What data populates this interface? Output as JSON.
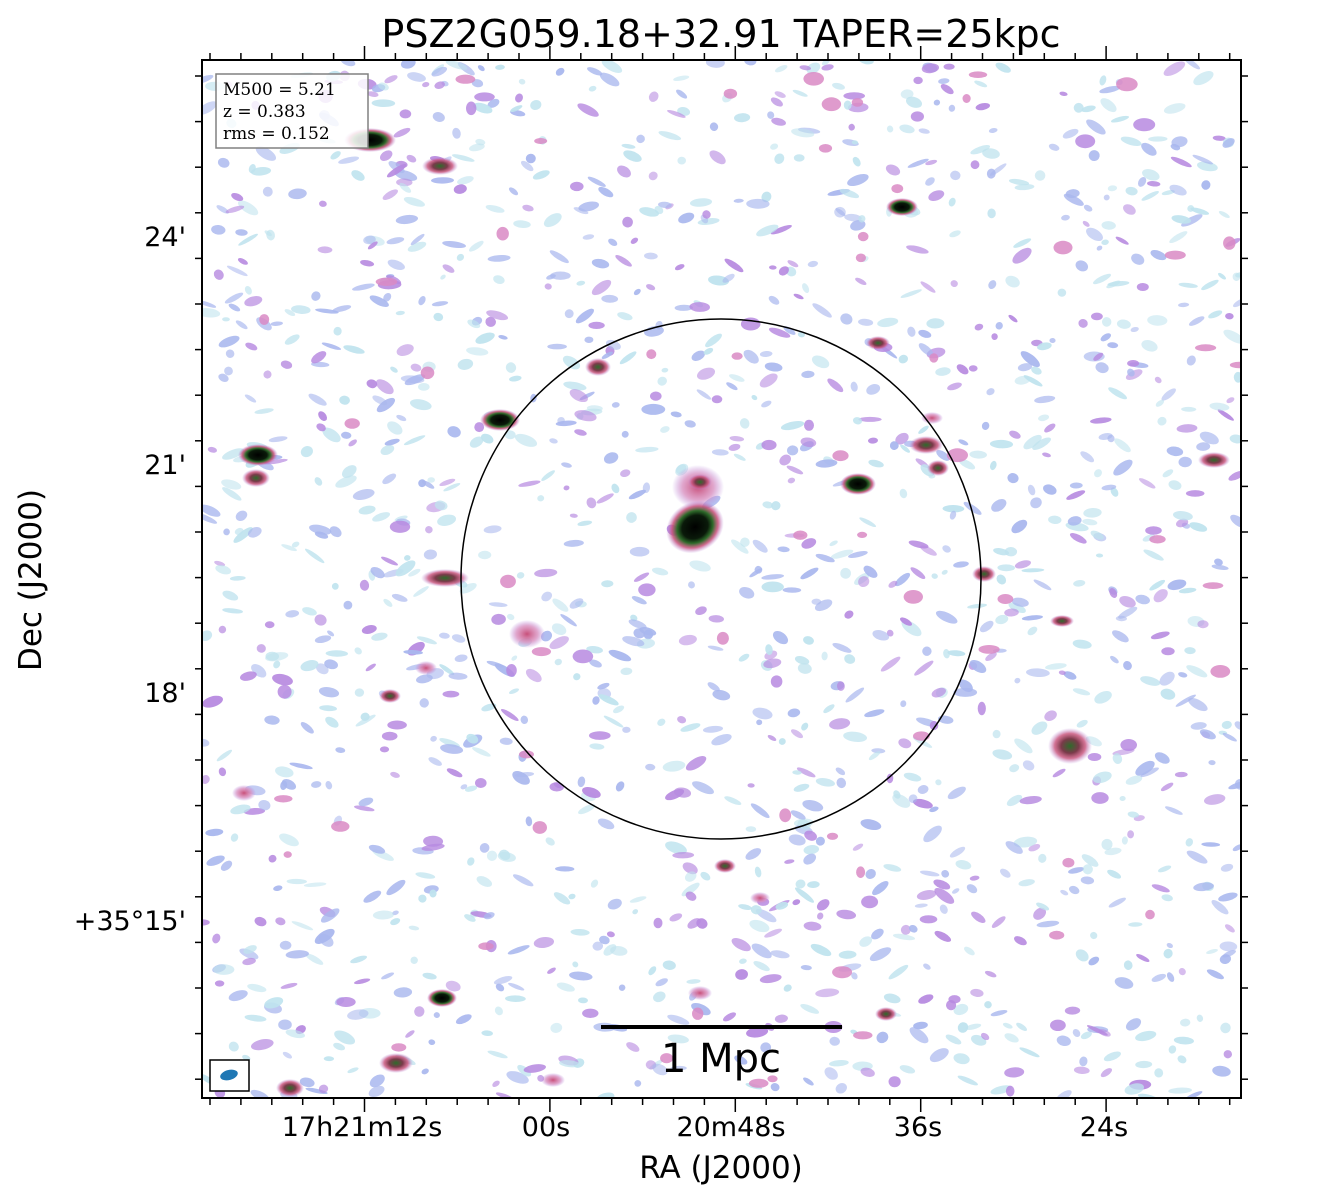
{
  "title": "PSZ2G059.18+32.91 TAPER=25kpc",
  "info": {
    "m500": "M500 = 5.21",
    "z": "z = 0.383",
    "rms": "rms = 0.152"
  },
  "axes": {
    "xlabel": "RA (J2000)",
    "ylabel": "Dec (J2000)",
    "xticks": [
      "17h21m12s",
      "00s",
      "20m48s",
      "36s",
      "24s"
    ],
    "yticks": [
      "24'",
      "21'",
      "18'",
      "+35°15'"
    ]
  },
  "scalebar": {
    "label": "1 Mpc"
  },
  "colors": {
    "background": "#ffffff",
    "noise_light": "#bfe3ee",
    "noise_mid": "#a9b7ee",
    "noise_violet": "#b78ae0",
    "source_pink": "#c8507a",
    "source_green": "#2e6b2a",
    "source_core": "#000000",
    "circle": "#000000",
    "beam": "#1f77b4"
  }
}
